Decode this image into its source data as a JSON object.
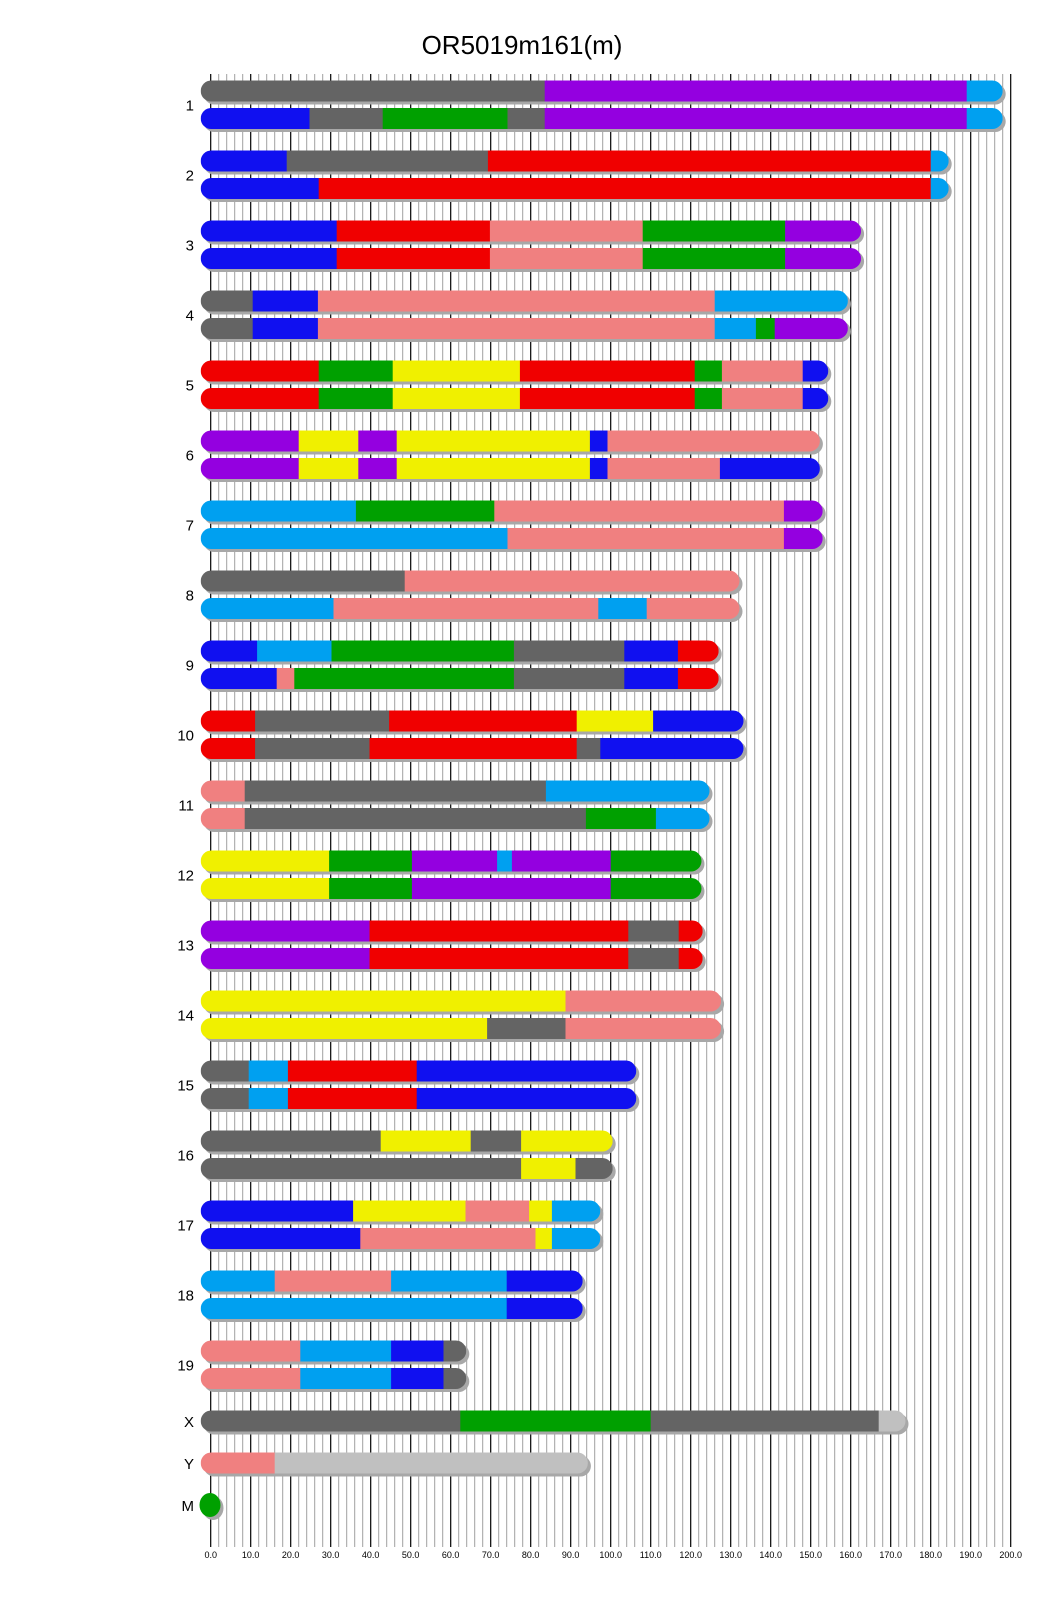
{
  "title": "OR5019m161(m)",
  "palette": {
    "gray": "#646464",
    "purple": "#9400E0",
    "lightblue": "#00A0F0",
    "blue": "#1010F0",
    "red": "#F00000",
    "green": "#00A000",
    "salmon": "#F08080",
    "yellow": "#F0F000",
    "silver": "#C0C0C0"
  },
  "chart_data": {
    "type": "chromosome-painting",
    "axis": {
      "min": 0,
      "max": 200,
      "major_step": 10,
      "minor_step": 2,
      "tick_labels": [
        "0.0",
        "10.0",
        "20.0",
        "30.0",
        "40.0",
        "50.0",
        "60.0",
        "70.0",
        "80.0",
        "90.0",
        "100.0",
        "110.0",
        "120.0",
        "130.0",
        "140.0",
        "150.0",
        "160.0",
        "170.0",
        "180.0",
        "190.0",
        "200.0"
      ]
    },
    "chromosomes": [
      {
        "label": "1",
        "haplotypes": [
          [
            [
              "gray",
              0,
              83.5
            ],
            [
              "purple",
              83.5,
              189
            ],
            [
              "lightblue",
              189,
              198
            ]
          ],
          [
            [
              "blue",
              0,
              24.7
            ],
            [
              "gray",
              24.7,
              43
            ],
            [
              "green",
              43,
              74.2
            ],
            [
              "gray",
              74.2,
              83.5
            ],
            [
              "purple",
              83.5,
              189
            ],
            [
              "lightblue",
              189,
              198
            ]
          ]
        ]
      },
      {
        "label": "2",
        "haplotypes": [
          [
            [
              "blue",
              0,
              19
            ],
            [
              "gray",
              19,
              69.3
            ],
            [
              "red",
              69.3,
              180
            ],
            [
              "lightblue",
              180,
              184.5
            ]
          ],
          [
            [
              "blue",
              0,
              27
            ],
            [
              "red",
              27,
              180
            ],
            [
              "lightblue",
              180,
              184.5
            ]
          ]
        ]
      },
      {
        "label": "3",
        "haplotypes": [
          [
            [
              "blue",
              0,
              31.5
            ],
            [
              "red",
              31.5,
              69.8
            ],
            [
              "salmon",
              69.8,
              108
            ],
            [
              "green",
              108,
              143.6
            ],
            [
              "purple",
              143.6,
              162.6
            ]
          ],
          [
            [
              "blue",
              0,
              31.5
            ],
            [
              "red",
              31.5,
              69.8
            ],
            [
              "salmon",
              69.8,
              108
            ],
            [
              "green",
              108,
              143.6
            ],
            [
              "purple",
              143.6,
              162.6
            ]
          ]
        ]
      },
      {
        "label": "4",
        "haplotypes": [
          [
            [
              "gray",
              0,
              10.5
            ],
            [
              "blue",
              10.5,
              26.8
            ],
            [
              "salmon",
              26.8,
              126
            ],
            [
              "lightblue",
              126,
              159.3
            ]
          ],
          [
            [
              "gray",
              0,
              10.5
            ],
            [
              "blue",
              10.5,
              26.8
            ],
            [
              "salmon",
              26.8,
              126
            ],
            [
              "lightblue",
              126,
              136.3
            ],
            [
              "green",
              136.3,
              141
            ],
            [
              "purple",
              141,
              159.3
            ]
          ]
        ]
      },
      {
        "label": "5",
        "haplotypes": [
          [
            [
              "red",
              0,
              27
            ],
            [
              "green",
              27,
              45.5
            ],
            [
              "yellow",
              45.5,
              77.3
            ],
            [
              "red",
              77.3,
              121
            ],
            [
              "green",
              121,
              127.8
            ],
            [
              "salmon",
              127.8,
              148
            ],
            [
              "blue",
              148,
              154.4
            ]
          ],
          [
            [
              "red",
              0,
              27
            ],
            [
              "green",
              27,
              45.5
            ],
            [
              "yellow",
              45.5,
              77.3
            ],
            [
              "red",
              77.3,
              121
            ],
            [
              "green",
              121,
              127.8
            ],
            [
              "salmon",
              127.8,
              148
            ],
            [
              "blue",
              148,
              154.4
            ]
          ]
        ]
      },
      {
        "label": "6",
        "haplotypes": [
          [
            [
              "purple",
              0,
              22
            ],
            [
              "yellow",
              22,
              36.9
            ],
            [
              "purple",
              36.9,
              46.5
            ],
            [
              "yellow",
              46.5,
              94.8
            ],
            [
              "blue",
              94.8,
              99.2
            ],
            [
              "salmon",
              99.2,
              152.3
            ]
          ],
          [
            [
              "purple",
              0,
              22
            ],
            [
              "yellow",
              22,
              36.9
            ],
            [
              "purple",
              36.9,
              46.5
            ],
            [
              "yellow",
              46.5,
              94.8
            ],
            [
              "blue",
              94.8,
              99.2
            ],
            [
              "salmon",
              99.2,
              127.3
            ],
            [
              "blue",
              127.3,
              152.3
            ]
          ]
        ]
      },
      {
        "label": "7",
        "haplotypes": [
          [
            [
              "lightblue",
              0,
              36.3
            ],
            [
              "green",
              36.3,
              70.9
            ],
            [
              "salmon",
              70.9,
              143.3
            ],
            [
              "purple",
              143.3,
              153
            ]
          ],
          [
            [
              "lightblue",
              0,
              74.2
            ],
            [
              "salmon",
              74.2,
              143.3
            ],
            [
              "purple",
              143.3,
              153
            ]
          ]
        ]
      },
      {
        "label": "8",
        "haplotypes": [
          [
            [
              "gray",
              0,
              48.5
            ],
            [
              "salmon",
              48.5,
              132.2
            ]
          ],
          [
            [
              "lightblue",
              0,
              30.7
            ],
            [
              "salmon",
              30.7,
              96.9
            ],
            [
              "lightblue",
              96.9,
              109
            ],
            [
              "salmon",
              109,
              132.2
            ]
          ]
        ]
      },
      {
        "label": "9",
        "haplotypes": [
          [
            [
              "blue",
              0,
              11.6
            ],
            [
              "lightblue",
              11.6,
              30.2
            ],
            [
              "green",
              30.2,
              75.8
            ],
            [
              "gray",
              75.8,
              103.4
            ],
            [
              "blue",
              103.4,
              116.8
            ],
            [
              "red",
              116.8,
              127
            ]
          ],
          [
            [
              "blue",
              0,
              16.5
            ],
            [
              "salmon",
              16.5,
              20.9
            ],
            [
              "green",
              20.9,
              75.8
            ],
            [
              "gray",
              75.8,
              103.4
            ],
            [
              "blue",
              103.4,
              116.8
            ],
            [
              "red",
              116.8,
              127
            ]
          ]
        ]
      },
      {
        "label": "10",
        "haplotypes": [
          [
            [
              "red",
              0,
              11.1
            ],
            [
              "gray",
              11.1,
              44.6
            ],
            [
              "red",
              44.6,
              91.5
            ],
            [
              "yellow",
              91.5,
              110.6
            ],
            [
              "blue",
              110.6,
              133.2
            ]
          ],
          [
            [
              "red",
              0,
              11.1
            ],
            [
              "gray",
              11.1,
              39.7
            ],
            [
              "red",
              39.7,
              91.5
            ],
            [
              "gray",
              91.5,
              97.4
            ],
            [
              "blue",
              97.4,
              133.2
            ]
          ]
        ]
      },
      {
        "label": "11",
        "haplotypes": [
          [
            [
              "salmon",
              0,
              8.5
            ],
            [
              "gray",
              8.5,
              83.8
            ],
            [
              "lightblue",
              83.8,
              124.7
            ]
          ],
          [
            [
              "salmon",
              0,
              8.5
            ],
            [
              "gray",
              8.5,
              93.8
            ],
            [
              "green",
              93.8,
              111.3
            ],
            [
              "lightblue",
              111.3,
              124.7
            ]
          ]
        ]
      },
      {
        "label": "12",
        "haplotypes": [
          [
            [
              "yellow",
              0,
              29.6
            ],
            [
              "green",
              29.6,
              50.3
            ],
            [
              "purple",
              50.3,
              71.6
            ],
            [
              "lightblue",
              71.6,
              75.3
            ],
            [
              "purple",
              75.3,
              100
            ],
            [
              "green",
              100,
              122.7
            ]
          ],
          [
            [
              "yellow",
              0,
              29.6
            ],
            [
              "green",
              29.6,
              50.3
            ],
            [
              "purple",
              50.3,
              100
            ],
            [
              "green",
              100,
              122.7
            ]
          ]
        ]
      },
      {
        "label": "13",
        "haplotypes": [
          [
            [
              "purple",
              0,
              39.7
            ],
            [
              "red",
              39.7,
              104.4
            ],
            [
              "gray",
              104.4,
              117
            ],
            [
              "red",
              117,
              123
            ]
          ],
          [
            [
              "purple",
              0,
              39.7
            ],
            [
              "red",
              39.7,
              104.4
            ],
            [
              "gray",
              104.4,
              117
            ],
            [
              "red",
              117,
              123
            ]
          ]
        ]
      },
      {
        "label": "14",
        "haplotypes": [
          [
            [
              "yellow",
              0,
              88.7
            ],
            [
              "salmon",
              88.7,
              127.6
            ]
          ],
          [
            [
              "yellow",
              0,
              69.1
            ],
            [
              "gray",
              69.1,
              88.7
            ],
            [
              "salmon",
              88.7,
              127.6
            ]
          ]
        ]
      },
      {
        "label": "15",
        "haplotypes": [
          [
            [
              "gray",
              0,
              9.5
            ],
            [
              "lightblue",
              9.5,
              19.3
            ],
            [
              "red",
              19.3,
              51.5
            ],
            [
              "blue",
              51.5,
              106.4
            ]
          ],
          [
            [
              "gray",
              0,
              9.5
            ],
            [
              "lightblue",
              9.5,
              19.3
            ],
            [
              "red",
              19.3,
              51.5
            ],
            [
              "blue",
              51.5,
              106.4
            ]
          ]
        ]
      },
      {
        "label": "16",
        "haplotypes": [
          [
            [
              "gray",
              0,
              42.5
            ],
            [
              "yellow",
              42.5,
              65
            ],
            [
              "gray",
              65,
              77.6
            ],
            [
              "yellow",
              77.6,
              100.5
            ]
          ],
          [
            [
              "gray",
              0,
              77.6
            ],
            [
              "yellow",
              77.6,
              91.2
            ],
            [
              "gray",
              91.2,
              100.5
            ]
          ]
        ]
      },
      {
        "label": "17",
        "haplotypes": [
          [
            [
              "blue",
              0,
              35.6
            ],
            [
              "yellow",
              35.6,
              63.7
            ],
            [
              "salmon",
              63.7,
              79.6
            ],
            [
              "yellow",
              79.6,
              85.3
            ],
            [
              "lightblue",
              85.3,
              97.4
            ]
          ],
          [
            [
              "blue",
              0,
              37.4
            ],
            [
              "salmon",
              37.4,
              81.2
            ],
            [
              "yellow",
              81.2,
              85.3
            ],
            [
              "lightblue",
              85.3,
              97.4
            ]
          ]
        ]
      },
      {
        "label": "18",
        "haplotypes": [
          [
            [
              "lightblue",
              0,
              16
            ],
            [
              "salmon",
              16,
              45.1
            ],
            [
              "lightblue",
              45.1,
              74
            ],
            [
              "blue",
              74,
              93
            ]
          ],
          [
            [
              "lightblue",
              0,
              74
            ],
            [
              "blue",
              74,
              93
            ]
          ]
        ]
      },
      {
        "label": "19",
        "haplotypes": [
          [
            [
              "salmon",
              0,
              22.4
            ],
            [
              "lightblue",
              22.4,
              45.1
            ],
            [
              "blue",
              45.1,
              58.2
            ],
            [
              "gray",
              58.2,
              63.9
            ]
          ],
          [
            [
              "salmon",
              0,
              22.4
            ],
            [
              "lightblue",
              22.4,
              45.1
            ],
            [
              "blue",
              45.1,
              58.2
            ],
            [
              "gray",
              58.2,
              63.9
            ]
          ]
        ]
      },
      {
        "label": "X",
        "haplotypes": [
          [
            [
              "gray",
              0,
              62.4
            ],
            [
              "green",
              62.4,
              110
            ],
            [
              "gray",
              110,
              167
            ],
            [
              "silver",
              167,
              173.7
            ]
          ]
        ]
      },
      {
        "label": "Y",
        "haplotypes": [
          [
            [
              "salmon",
              0,
              16
            ],
            [
              "silver",
              16,
              94.3
            ]
          ]
        ]
      },
      {
        "label": "M",
        "haplotypes": [
          [
            [
              "green",
              0,
              0
            ]
          ]
        ]
      }
    ]
  }
}
